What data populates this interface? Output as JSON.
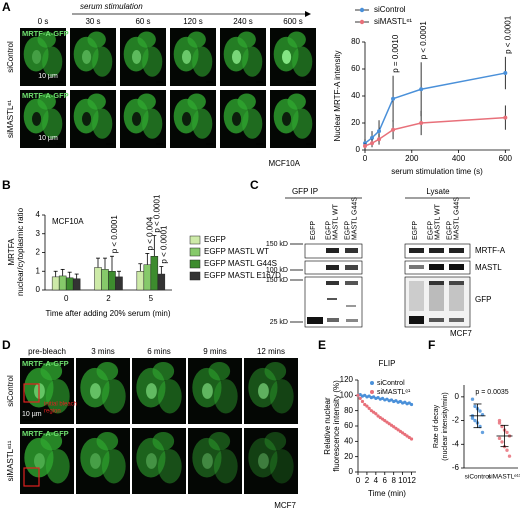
{
  "panel_labels": [
    "A",
    "B",
    "C",
    "D",
    "E",
    "F"
  ],
  "panel_a": {
    "stimulation": "serum stimulation",
    "times": [
      "0 s",
      "30 s",
      "60 s",
      "120 s",
      "240 s",
      "600 s"
    ],
    "rows": [
      "siControl",
      "siMASTLᵉ¹"
    ],
    "channel": "MRTF-A-GFP",
    "scale": "10 µm",
    "cell_line": "MCF10A"
  },
  "panel_c": {
    "headers": [
      "GFP IP",
      "Lysate"
    ],
    "lanes": [
      [
        "EGFP"
      ],
      [
        "EGFP",
        "MASTL WT"
      ],
      [
        "EGFP",
        "MASTL G44S"
      ]
    ],
    "markers": [
      "150 kD",
      "100 kD",
      "150 kD",
      "25 kD"
    ],
    "bands": [
      "MRTF-A",
      "MASTL",
      "GFP"
    ],
    "cell_line": "MCF7"
  },
  "panel_d": {
    "times": [
      "pre-bleach",
      "3 mins",
      "6 mins",
      "9 mins",
      "12 mins"
    ],
    "rows": [
      "siControl",
      "siMASTLᵉ¹¹"
    ],
    "channel": "MRTF-A-GFP",
    "scale": "10 µm",
    "bleach": [
      "initial bleach",
      "region"
    ],
    "cell_line": "MCF7"
  },
  "chart_data": [
    {
      "type": "line",
      "x": [
        0,
        30,
        60,
        120,
        240,
        600
      ],
      "series": [
        {
          "name": "siControl",
          "color": "#4a90d9",
          "values": [
            5,
            9,
            14,
            38,
            45,
            57
          ],
          "errors": [
            3,
            5,
            8,
            17,
            20,
            12
          ]
        },
        {
          "name": "siMASTLᵉ¹",
          "color": "#e8707a",
          "values": [
            3,
            5,
            8,
            15,
            20,
            24
          ],
          "errors": [
            2,
            3,
            4,
            7,
            9,
            9
          ]
        }
      ],
      "xlim": [
        0,
        620
      ],
      "xticks": [
        0,
        200,
        400,
        600
      ],
      "ylim": [
        0,
        80
      ],
      "yticks": [
        0,
        20,
        40,
        60,
        80
      ],
      "xlabel": "serum stimulation time (s)",
      "ylabel": "Nuclear MRTF-A intensity",
      "annotations": [
        {
          "text": "p = 0.0010",
          "x": 120
        },
        {
          "text": "p < 0.0001",
          "x": 240
        },
        {
          "text": "p < 0.0001",
          "x": 600
        }
      ]
    },
    {
      "type": "bar",
      "categories": [
        "0",
        "2",
        "5"
      ],
      "series": [
        {
          "name": "EGFP",
          "color": "#cdeaa8",
          "values": [
            0.7,
            1.2,
            1.0
          ],
          "errors": [
            0.3,
            0.5,
            0.4
          ]
        },
        {
          "name": "EGFP MASTL WT",
          "color": "#86c96a",
          "values": [
            0.75,
            1.1,
            1.35
          ],
          "errors": [
            0.35,
            0.6,
            0.6
          ]
        },
        {
          "name": "EGFP MASTL G44S",
          "color": "#3d8c2e",
          "values": [
            0.65,
            1.0,
            1.8
          ],
          "errors": [
            0.3,
            0.8,
            1.1
          ]
        },
        {
          "name": "EGFP MASTL E167D",
          "color": "#333333",
          "values": [
            0.6,
            0.7,
            0.85
          ],
          "errors": [
            0.25,
            0.3,
            0.4
          ]
        }
      ],
      "ylim": [
        0,
        4
      ],
      "yticks": [
        0,
        1,
        2,
        3,
        4
      ],
      "xlabel": "Time after adding 20% serum (min)",
      "ylabel": [
        "MRTFA",
        "nuclear/cytoplasmic ratio"
      ],
      "note": "MCF10A",
      "annotations": [
        {
          "text": "p < 0.0001",
          "category": "2",
          "series": "EGFP MASTL G44S"
        },
        {
          "text": "p < 0.004",
          "category": "5",
          "series": "EGFP MASTL WT"
        },
        {
          "text": "p < 0.0001",
          "category": "5",
          "series": "EGFP MASTL G44S"
        },
        {
          "text": "p < 0.0001",
          "category": "5",
          "series": "EGFP MASTL E167D"
        }
      ]
    },
    {
      "type": "scatter",
      "title": "FLIP",
      "x": [
        0,
        0.5,
        1,
        1.5,
        2,
        2.5,
        3,
        3.5,
        4,
        4.5,
        5,
        5.5,
        6,
        6.5,
        7,
        7.5,
        8,
        8.5,
        9,
        9.5,
        10,
        10.5,
        11,
        11.5,
        12
      ],
      "series": [
        {
          "name": "siControl",
          "color": "#4a90d9",
          "values": [
            100,
            101,
            99,
            100,
            98,
            99,
            97,
            98,
            96,
            97,
            95,
            96,
            94,
            95,
            93,
            94,
            92,
            93,
            91,
            92,
            90,
            91,
            89,
            90,
            88
          ]
        },
        {
          "name": "siMASTLᵉ¹",
          "color": "#e8707a",
          "values": [
            100,
            96,
            92,
            88,
            86,
            83,
            80,
            78,
            76,
            73,
            71,
            69,
            67,
            65,
            63,
            61,
            59,
            57,
            55,
            53,
            51,
            49,
            47,
            45,
            43
          ]
        }
      ],
      "xlim": [
        0,
        13
      ],
      "xticks": [
        0,
        2,
        4,
        6,
        8,
        10,
        12
      ],
      "ylim": [
        0,
        120
      ],
      "yticks": [
        0,
        20,
        40,
        60,
        80,
        100,
        120
      ],
      "xlabel": "Time (min)",
      "ylabel": [
        "Relative nuclear",
        "fluorescence intensity (%)"
      ]
    },
    {
      "type": "dot",
      "categories": [
        "siControl",
        "siMASTLᵉ¹¹"
      ],
      "groups": [
        {
          "color": "#4a90d9",
          "values": [
            -0.2,
            -0.8,
            -1.0,
            -1.2,
            -1.5,
            -1.6,
            -2.0,
            -2.2,
            -2.5,
            -3.0,
            -1.8
          ],
          "mean": -1.6,
          "sd": 1.0
        },
        {
          "color": "#e8707a",
          "values": [
            -2.0,
            -2.5,
            -2.8,
            -3.0,
            -3.3,
            -3.5,
            -3.8,
            -4.2,
            -4.5,
            -5.0,
            -2.2
          ],
          "mean": -3.3,
          "sd": 0.9
        }
      ],
      "ylim": [
        -6,
        1
      ],
      "yticks": [
        0,
        -2,
        -4,
        -6
      ],
      "ylabel": [
        "Rate of decay",
        "(nuclear intensity/min)"
      ],
      "annotation": "p = 0.0035"
    }
  ]
}
